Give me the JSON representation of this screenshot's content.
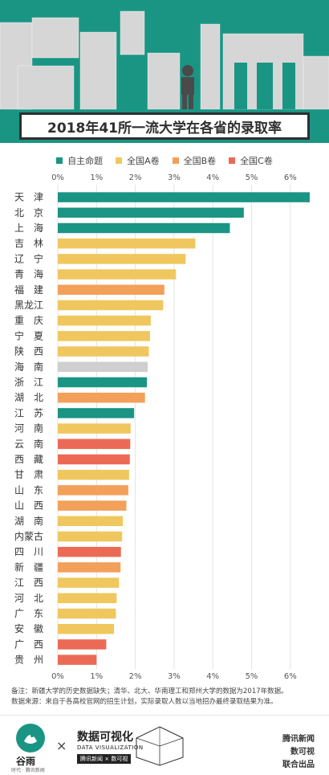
{
  "header": {
    "title": "2018年41所一流大学在各省的录取率",
    "colors": {
      "band": "#1a9584",
      "building": "#d9d9d9"
    }
  },
  "legend": [
    {
      "label": "自主命题",
      "color": "#1a9584"
    },
    {
      "label": "全国A卷",
      "color": "#f0c75e"
    },
    {
      "label": "全国B卷",
      "color": "#f3a05a"
    },
    {
      "label": "全国C卷",
      "color": "#ec6a55"
    }
  ],
  "chart_data": {
    "type": "bar",
    "orientation": "horizontal",
    "x_unit": "%",
    "xlim": [
      0,
      6.5
    ],
    "x_ticks": [
      "0%",
      "1%",
      "2%",
      "3%",
      "4%",
      "5%",
      "6%"
    ],
    "grid": true,
    "categories": [
      "天津",
      "北京",
      "上海",
      "吉林",
      "辽宁",
      "青海",
      "福建",
      "黑龙江",
      "重庆",
      "宁夏",
      "陕西",
      "海南",
      "浙江",
      "湖北",
      "江苏",
      "河南",
      "云南",
      "西藏",
      "甘肃",
      "山东",
      "山西",
      "湖南",
      "内蒙古",
      "四川",
      "新疆",
      "江西",
      "河北",
      "广东",
      "安徽",
      "广西",
      "贵州"
    ],
    "display_labels": [
      "天　津",
      "北　京",
      "上　海",
      "吉　林",
      "辽　宁",
      "青　海",
      "福　建",
      "黑龙江",
      "重　庆",
      "宁　夏",
      "陕　西",
      "海　南",
      "浙　江",
      "湖　北",
      "江　苏",
      "河　南",
      "云　南",
      "西　藏",
      "甘　肃",
      "山　东",
      "山　西",
      "湖　南",
      "内蒙古",
      "四　川",
      "新　疆",
      "江　西",
      "河　北",
      "广　东",
      "安　徽",
      "广　西",
      "贵　州"
    ],
    "values": [
      6.5,
      4.8,
      4.44,
      3.55,
      3.3,
      3.05,
      2.75,
      2.72,
      2.4,
      2.38,
      2.35,
      2.32,
      2.3,
      2.25,
      1.97,
      1.88,
      1.87,
      1.86,
      1.84,
      1.82,
      1.77,
      1.68,
      1.66,
      1.63,
      1.62,
      1.58,
      1.52,
      1.5,
      1.45,
      1.25,
      1.0
    ],
    "groups": [
      "自主命题",
      "自主命题",
      "自主命题",
      "全国A卷",
      "全国A卷",
      "全国A卷",
      "全国B卷",
      "全国A卷",
      "全国A卷",
      "全国A卷",
      "全国A卷",
      "其他",
      "自主命题",
      "全国B卷",
      "自主命题",
      "全国A卷",
      "全国C卷",
      "全国C卷",
      "全国A卷",
      "全国B卷",
      "全国B卷",
      "全国A卷",
      "全国A卷",
      "全国C卷",
      "全国B卷",
      "全国A卷",
      "全国A卷",
      "全国A卷",
      "全国A卷",
      "全国C卷",
      "全国C卷"
    ],
    "group_colors": {
      "自主命题": "#1a9584",
      "全国A卷": "#f0c75e",
      "全国B卷": "#f3a05a",
      "全国C卷": "#ec6a55",
      "其他": "#cfcfcf"
    }
  },
  "notes": {
    "line1": "备注：新疆大学的历史数据缺失；清华、北大、华南理工和郑州大学的数据为2017年数据。",
    "line2": "数据来源：来自于各高校官网的招生计划，实际录取人数以当地招办最终录取结果为准。"
  },
  "footer": {
    "logo_text": "谷雨",
    "logo_sub": "时代 · 腾讯新闻",
    "times_symbol": "×",
    "brand_cn": "数据可视化",
    "brand_en": "DATA VISUALIZATION",
    "brand_sub": "腾讯新闻 × 数可视",
    "credit1": "腾讯新闻",
    "credit2": "数可视",
    "credit3": "联合出品"
  }
}
